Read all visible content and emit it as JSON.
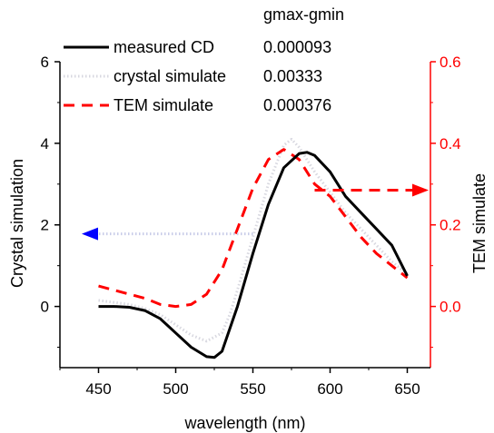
{
  "chart_data": {
    "type": "line",
    "title": "",
    "xlabel": "wavelength (nm)",
    "ylabel_left": "Crystal simulation",
    "ylabel_right": "TEM simulate",
    "xlim": [
      425,
      665
    ],
    "ylim_left": [
      -1.5,
      6
    ],
    "ylim_right": [
      -0.15,
      0.6
    ],
    "x_ticks": [
      450,
      500,
      550,
      600,
      650
    ],
    "y_ticks_left": [
      0,
      2,
      4,
      6
    ],
    "y_ticks_right": [
      0.0,
      0.2,
      0.4,
      0.6
    ],
    "x_tick_labels": [
      "450",
      "500",
      "550",
      "600",
      "650"
    ],
    "y_tick_labels_left": [
      "0",
      "2",
      "4",
      "6"
    ],
    "y_tick_labels_right": [
      "0.0",
      "0.2",
      "0.4",
      "0.6"
    ],
    "grid": false,
    "legend_position": "top-left",
    "table_header": "gmax-gmin",
    "series": [
      {
        "name": "measured CD",
        "axis": "left",
        "color": "#000000",
        "style": "solid",
        "g_value": "0.000093",
        "x": [
          450,
          460,
          470,
          480,
          490,
          500,
          510,
          520,
          525,
          530,
          540,
          550,
          560,
          570,
          580,
          585,
          590,
          600,
          610,
          620,
          630,
          640,
          650
        ],
        "y": [
          0.0,
          0.0,
          -0.02,
          -0.1,
          -0.3,
          -0.65,
          -1.0,
          -1.23,
          -1.25,
          -1.1,
          0.0,
          1.3,
          2.5,
          3.4,
          3.75,
          3.78,
          3.7,
          3.3,
          2.7,
          2.3,
          1.9,
          1.5,
          0.75
        ]
      },
      {
        "name": "crystal simulate",
        "axis": "left",
        "color": "#d8d8e0",
        "style": "dotted",
        "g_value": "0.00333",
        "x": [
          450,
          460,
          470,
          480,
          490,
          500,
          510,
          520,
          530,
          535,
          540,
          550,
          560,
          570,
          575,
          580,
          590,
          600,
          610,
          620,
          630,
          640,
          650
        ],
        "y": [
          0.15,
          0.1,
          0.05,
          -0.05,
          -0.2,
          -0.45,
          -0.7,
          -0.85,
          -0.65,
          -0.2,
          0.4,
          1.7,
          3.0,
          3.95,
          4.1,
          3.9,
          3.3,
          2.8,
          2.3,
          1.9,
          1.5,
          1.1,
          0.8
        ]
      },
      {
        "name": "TEM simulate",
        "axis": "right",
        "color": "#ff0000",
        "style": "dashed",
        "g_value": "0.000376",
        "x": [
          450,
          460,
          470,
          480,
          490,
          500,
          510,
          520,
          530,
          540,
          550,
          560,
          570,
          580,
          590,
          600,
          610,
          620,
          630,
          640,
          650
        ],
        "y": [
          0.05,
          0.04,
          0.03,
          0.02,
          0.005,
          0.0,
          0.005,
          0.03,
          0.09,
          0.19,
          0.29,
          0.36,
          0.385,
          0.36,
          0.3,
          0.27,
          0.22,
          0.17,
          0.13,
          0.1,
          0.07
        ]
      }
    ],
    "arrows": [
      {
        "points_to": "left axis",
        "color": "#0000ff",
        "y_left": 1.78,
        "x_from": 550
      },
      {
        "points_to": "right axis",
        "color": "#ff0000",
        "y_right": 0.285,
        "x_from": 590
      }
    ]
  }
}
